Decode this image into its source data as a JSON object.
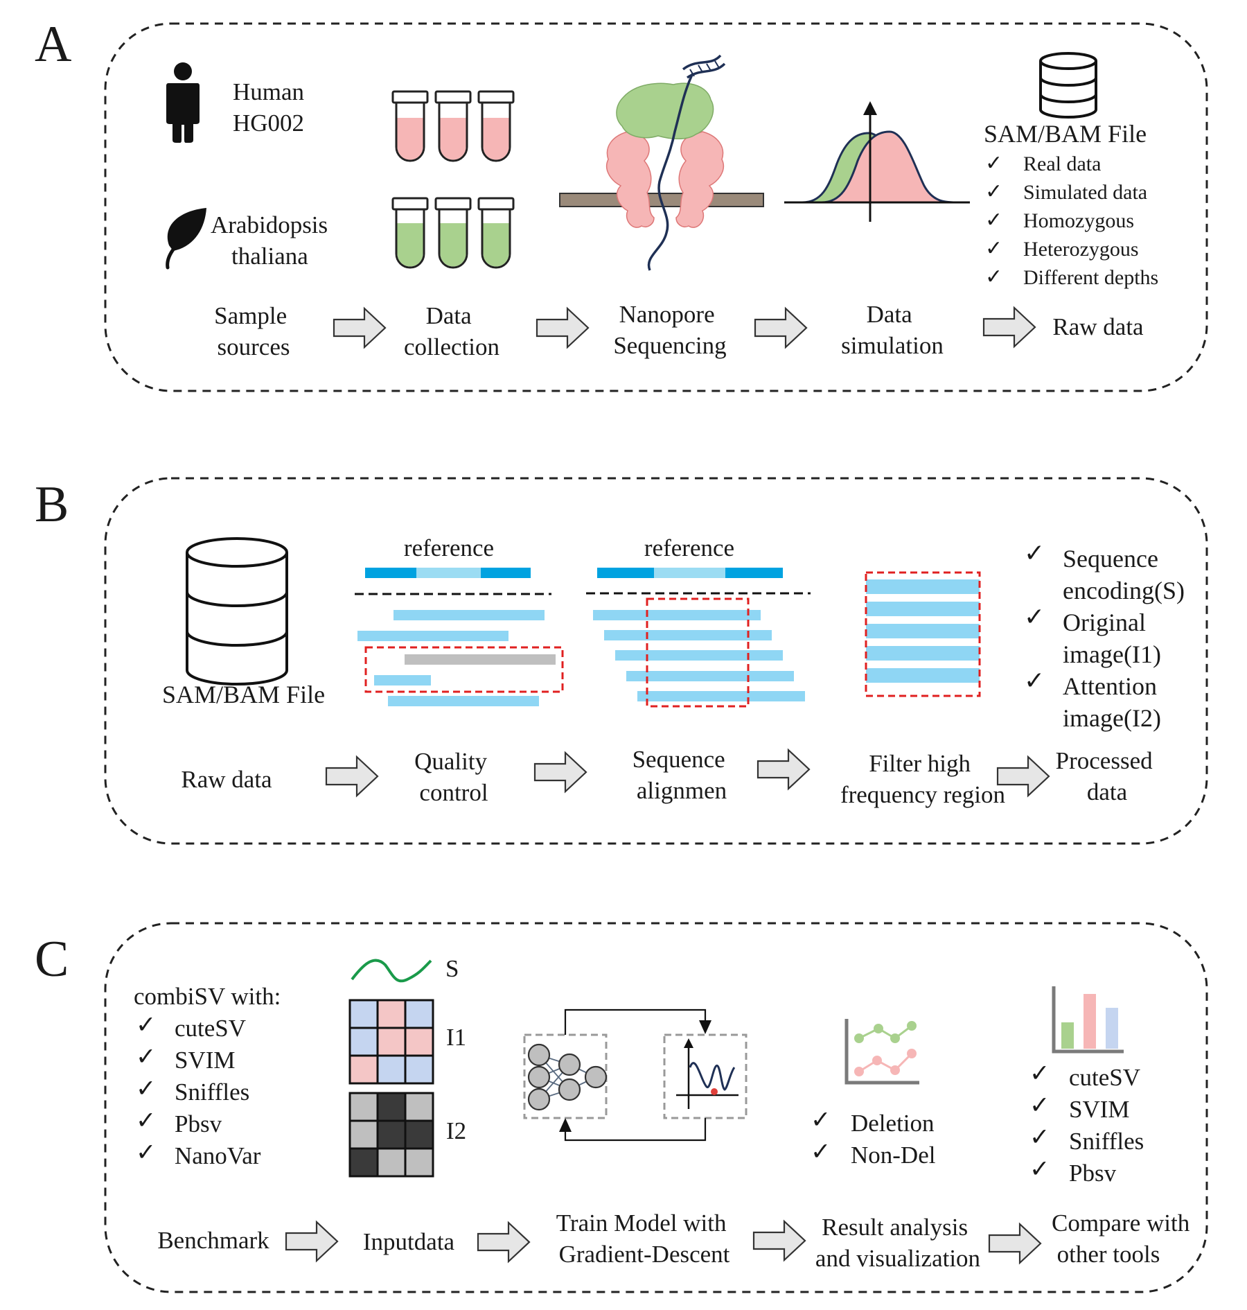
{
  "panels": {
    "a": {
      "letter": "A",
      "human": [
        "Human",
        "HG002"
      ],
      "plant": [
        "Arabidopsis",
        "thaliana"
      ],
      "file_title": "SAM/BAM File",
      "checklist": [
        "Real data",
        "Simulated data",
        "Homozygous",
        "Heterozygous",
        "Different depths"
      ],
      "steps": [
        [
          "Sample",
          "sources"
        ],
        [
          "Data",
          "collection"
        ],
        [
          "Nanopore",
          "Sequencing"
        ],
        [
          "Data",
          "simulation"
        ],
        [
          "Raw data"
        ]
      ]
    },
    "b": {
      "letter": "B",
      "file_label": "SAM/BAM File",
      "reference_qc": "reference",
      "reference_align": "reference",
      "outputs": [
        [
          "Sequence",
          "encoding(S)"
        ],
        [
          "Original",
          "image(I1)"
        ],
        [
          "Attention",
          "image(I2)"
        ]
      ],
      "steps": [
        [
          "Raw data"
        ],
        [
          "Quality",
          "control"
        ],
        [
          "Sequence",
          "alignmen"
        ],
        [
          "Filter high",
          "frequency region"
        ],
        [
          "Processed",
          "data"
        ]
      ]
    },
    "c": {
      "letter": "C",
      "benchmark_title": "combiSV with:",
      "benchmark_tools": [
        "cuteSV",
        "SVIM",
        "Sniffles",
        "Pbsv",
        "NanoVar"
      ],
      "input_labels": [
        "S",
        "I1",
        "I2"
      ],
      "classes": [
        "Deletion",
        "Non-Del"
      ],
      "compare_tools": [
        "cuteSV",
        "SVIM",
        "Sniffles",
        "Pbsv"
      ],
      "steps": [
        [
          "Benchmark"
        ],
        [
          "Inputdata"
        ],
        [
          "Train Model with",
          "Gradient-Descent"
        ],
        [
          "Result analysis",
          "and visualization"
        ],
        [
          "Compare with",
          "other tools"
        ]
      ]
    }
  },
  "colors": {
    "pink": "#f6b6b6",
    "green": "#a9d18e",
    "ref_dark": "#00a2e0",
    "ref_light": "#9bdcf3",
    "read": "#8fd6f4",
    "grey_read": "#bfbfbf",
    "red_dash": "#e02020",
    "arrow_fill": "#e6e6e6",
    "grid_blue": "#c5d5f0",
    "grid_pink": "#f4c6c6",
    "grid_light": "#bfbfbf",
    "grid_dark": "#3a3a3a",
    "bar_green": "#a9d18e",
    "bar_pink": "#f6b6b6",
    "bar_blue": "#c5d5f0",
    "dot_red": "#e0403a"
  },
  "icons": [
    "person-icon",
    "leaf-icon",
    "test-tube-icon",
    "nanopore-icon",
    "distribution-icon",
    "database-icon",
    "neural-network-icon",
    "loss-curve-icon",
    "line-plot-icon",
    "bar-chart-icon",
    "check-icon",
    "arrow-icon"
  ]
}
